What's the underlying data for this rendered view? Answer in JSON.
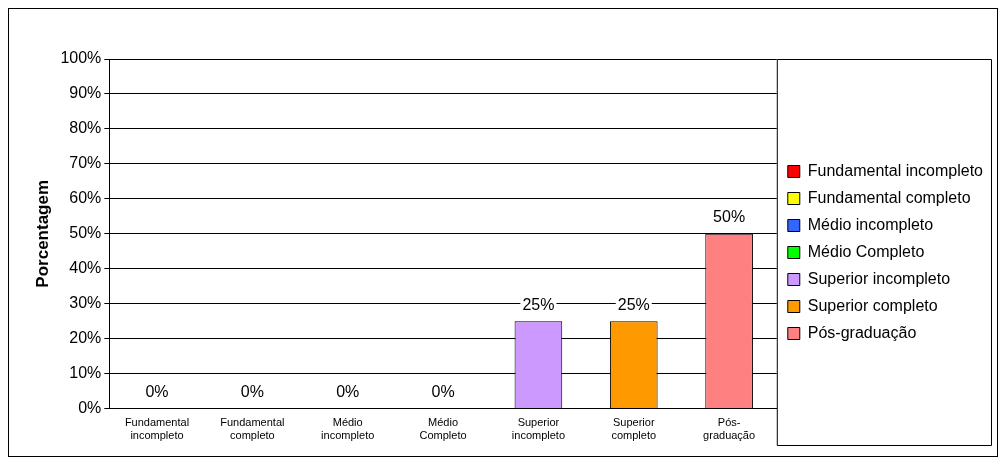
{
  "chart_data": {
    "type": "bar",
    "ylabel": "Porcentagem",
    "categories": [
      "Fundamental incompleto",
      "Fundamental completo",
      "Médio incompleto",
      "Médio Completo",
      "Superior incompleto",
      "Superior completo",
      "Pós-graduação"
    ],
    "series": [
      {
        "name": "Fundamental incompleto",
        "color": "#ff0000",
        "values": [
          0,
          null,
          null,
          null,
          null,
          null,
          null
        ],
        "value_labels": [
          "0%",
          null,
          null,
          null,
          null,
          null,
          null
        ]
      },
      {
        "name": "Fundamental completo",
        "color": "#ffff00",
        "values": [
          null,
          0,
          null,
          null,
          null,
          null,
          null
        ],
        "value_labels": [
          null,
          "0%",
          null,
          null,
          null,
          null,
          null
        ]
      },
      {
        "name": "Médio incompleto",
        "color": "#3366ff",
        "values": [
          null,
          null,
          0,
          null,
          null,
          null,
          null
        ],
        "value_labels": [
          null,
          null,
          "0%",
          null,
          null,
          null,
          null
        ]
      },
      {
        "name": "Médio Completo",
        "color": "#00ff00",
        "values": [
          null,
          null,
          null,
          0,
          null,
          null,
          null
        ],
        "value_labels": [
          null,
          null,
          null,
          "0%",
          null,
          null,
          null
        ]
      },
      {
        "name": "Superior incompleto",
        "color": "#cc99ff",
        "values": [
          null,
          null,
          null,
          null,
          25,
          null,
          null
        ],
        "value_labels": [
          null,
          null,
          null,
          null,
          "25%",
          null,
          null
        ]
      },
      {
        "name": "Superior completo",
        "color": "#ff9900",
        "values": [
          null,
          null,
          null,
          null,
          null,
          25,
          null
        ],
        "value_labels": [
          null,
          null,
          null,
          null,
          null,
          "25%",
          null
        ]
      },
      {
        "name": "Pós-graduação",
        "color": "#ff8080",
        "values": [
          null,
          null,
          null,
          null,
          null,
          null,
          50
        ],
        "value_labels": [
          null,
          null,
          null,
          null,
          null,
          null,
          "50%"
        ]
      }
    ],
    "ylim": [
      0,
      100
    ],
    "yticks": [
      {
        "value": 0,
        "label": "0%"
      },
      {
        "value": 10,
        "label": "10%"
      },
      {
        "value": 20,
        "label": "20%"
      },
      {
        "value": 30,
        "label": "30%"
      },
      {
        "value": 40,
        "label": "40%"
      },
      {
        "value": 50,
        "label": "50%"
      },
      {
        "value": 60,
        "label": "60%"
      },
      {
        "value": 70,
        "label": "70%"
      },
      {
        "value": 80,
        "label": "80%"
      },
      {
        "value": 90,
        "label": "90%"
      },
      {
        "value": 100,
        "label": "100%"
      }
    ],
    "grid": "y",
    "legend": "right"
  }
}
